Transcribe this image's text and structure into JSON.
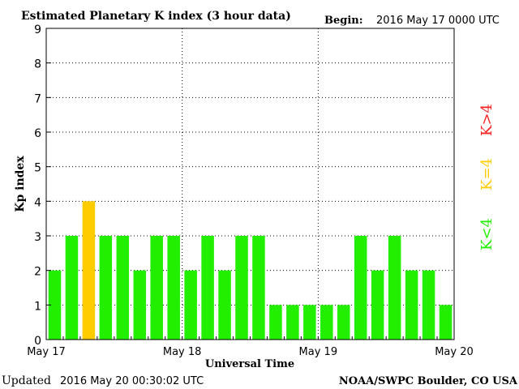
{
  "header": {
    "title": "Estimated Planetary K index (3 hour data)",
    "begin_label": "Begin:",
    "begin_value": "2016 May 17 0000 UTC"
  },
  "footer": {
    "updated_label": "Updated",
    "updated_value": "2016 May 20 00:30:02 UTC",
    "credit": "NOAA/SWPC Boulder, CO USA"
  },
  "legend": {
    "items": [
      {
        "label": "K>4",
        "color": "#ff2020"
      },
      {
        "label": "K=4",
        "color": "#ffcc00"
      },
      {
        "label": "K<4",
        "color": "#22ee00"
      }
    ]
  },
  "colors": {
    "below_4": "#22ee00",
    "equal_4": "#ffcc00",
    "above_4": "#ff2020",
    "axis": "#000000",
    "grid": "#000000"
  },
  "chart_data": {
    "type": "bar",
    "title": "Estimated Planetary K index (3 hour data)",
    "xlabel": "Universal Time",
    "ylabel": "Kp index",
    "ylim": [
      0,
      9
    ],
    "y_ticks": [
      "0",
      "1",
      "2",
      "3",
      "4",
      "5",
      "6",
      "7",
      "8",
      "9"
    ],
    "x_tick_labels": [
      "May 17",
      "May 18",
      "May 19",
      "May 20"
    ],
    "grid": true,
    "legend_placement": "right",
    "values": [
      2,
      3,
      4,
      3,
      3,
      2,
      3,
      3,
      2,
      3,
      2,
      3,
      3,
      1,
      1,
      1,
      1,
      1,
      3,
      2,
      3,
      2,
      2,
      1
    ]
  }
}
